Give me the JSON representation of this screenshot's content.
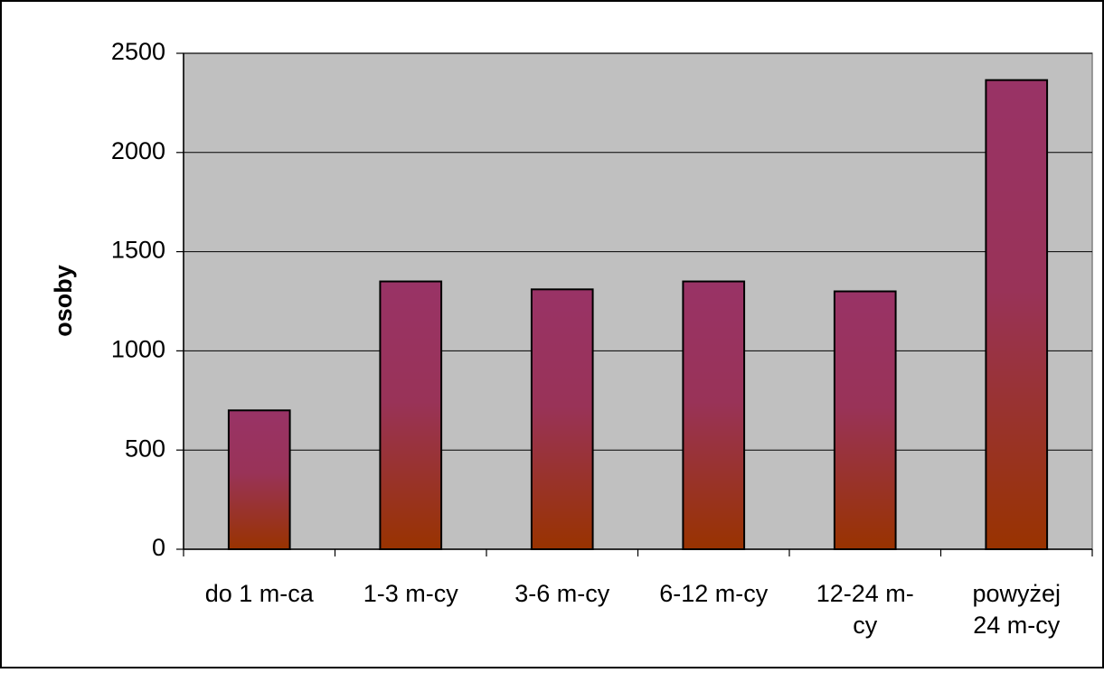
{
  "chart_data": {
    "type": "bar",
    "categories": [
      [
        "do 1 m-ca"
      ],
      [
        "1-3 m-cy"
      ],
      [
        "3-6 m-cy"
      ],
      [
        "6-12 m-cy"
      ],
      [
        "12-24 m-",
        "cy"
      ],
      [
        "powyżej",
        "24 m-cy"
      ]
    ],
    "values": [
      700,
      1350,
      1310,
      1350,
      1300,
      2365
    ],
    "ylabel": "osoby",
    "ylim": [
      0,
      2500
    ],
    "yticks": [
      "0",
      "500",
      "1000",
      "1500",
      "2000",
      "2500"
    ],
    "ytick_values": [
      0,
      500,
      1000,
      1500,
      2000,
      2500
    ],
    "grid": true,
    "plot_background": "#c0c0c0",
    "bar_gradient_top": "#993366",
    "bar_gradient_bottom": "#993300",
    "bar_outline": "#000000"
  }
}
